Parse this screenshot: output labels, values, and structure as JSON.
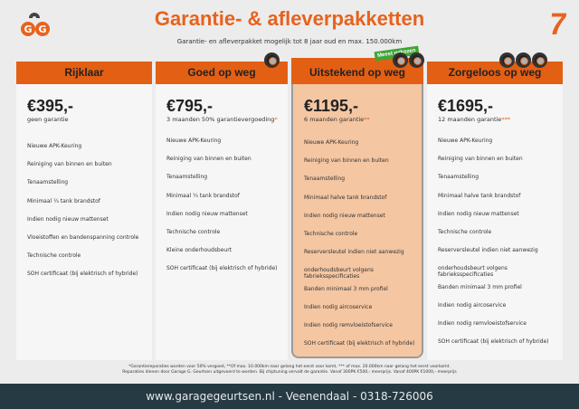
{
  "header": {
    "title": "Garantie- & afleverpakketten",
    "subtitle": "Garantie- en afleverpakket mogelijk tot 8 jaar oud en max. 150.000km",
    "logo_text": "GG",
    "badge_number": "7"
  },
  "badge": "Meest gekozen",
  "packages": [
    {
      "name": "Rijklaar",
      "price": "€395,-",
      "note": "geen garantie",
      "stars": "",
      "items": [
        "Nieuwe APK-Keuring",
        "Reiniging van binnen en buiten",
        "Tenaamstelling",
        "Minimaal ¼  tank brandstof",
        "Indien nodig nieuw mattenset",
        "Vloeistoffen en bandenspanning controle",
        "Technische controle",
        "SOH certificaat (bij elektrisch of hybride)"
      ]
    },
    {
      "name": "Goed op weg",
      "price": "€795,-",
      "note": "3 maanden 50% garantievergoeding",
      "stars": "*",
      "items": [
        "Nieuwe APK-Keuring",
        "Reiniging van binnen en buiten",
        "Tenaamstelling",
        "Minimaal ¼ tank brandstof",
        "Indien nodig nieuw mattenset",
        "Technische controle",
        "Kleine onderhoudsbeurt",
        "SOH certificaat (bij elektrisch of hybride)"
      ]
    },
    {
      "name": "Uitstekend op weg",
      "price": "€1195,-",
      "note": "6 maanden garantie",
      "stars": "**",
      "items": [
        "Nieuwe APK-Keuring",
        "Reiniging van binnen en buiten",
        "Tenaamstelling",
        "Minimaal halve tank brandstof",
        "Indien nodig nieuw mattenset",
        "Technische controle",
        "Reserversleutel indien niet aanwezig",
        "onderhoudsbeurt volgens fabrieksspecificaties",
        "Banden minimaal 3 mm profiel",
        "Indien nodig aircoservice",
        "Indien nodig remvloeistofservice",
        "SOH certificaat (bij elektrisch of hybride)"
      ]
    },
    {
      "name": "Zorgeloos op weg",
      "price": "€1695,-",
      "note": "12 maanden garantie",
      "stars": "***",
      "items": [
        "Nieuwe APK-Keuring",
        "Reiniging van binnen en buiten",
        "Tenaamstelling",
        "Minimaal halve tank brandstof",
        "Indien nodig nieuw mattenset",
        "Technische controle",
        "Reserversleutel indien niet aanwezig",
        "onderhoudsbeurt volgens fabrieksspecificaties",
        "Banden minimaal 3 mm profiel",
        "Indien nodig aircoservice",
        "Indien nodig remvloeistofservice",
        "SOH certificaat (bij elektrisch of hybride)"
      ]
    }
  ],
  "footnote": {
    "line1": "*Garantiereparaties worden voor 50% vergoed, **Of max. 10.000km naar gelang het eerst voor komt, *** of max. 20.000km naar gelang het eerst voorkomt.",
    "line2": "Reparaties dienen door Garage G. Geurtsen uitgevoerd te worden. Bij chiptuning vervalt de garantie. Vanaf 300PK €500,- meerprijs. Vanaf 400PK €1000,- meerprijs"
  },
  "footer": "www.garagegeurtsen.nl - Veenendaal - 0318-726006",
  "colors": {
    "accent": "#e35f14",
    "highlight": "#f4c6a2",
    "footer_bg": "#253a42",
    "badge": "#3fa535"
  }
}
